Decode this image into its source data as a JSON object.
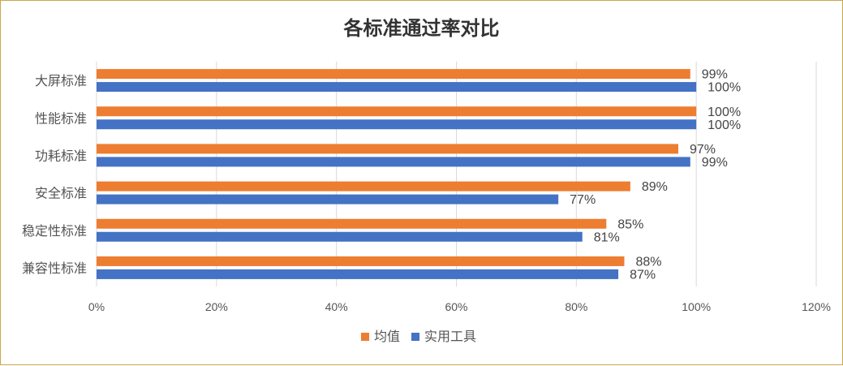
{
  "chart_data": {
    "type": "bar",
    "orientation": "horizontal",
    "title": "各标准通过率对比",
    "categories": [
      "大屏标准",
      "性能标准",
      "功耗标准",
      "安全标准",
      "稳定性标准",
      "兼容性标准"
    ],
    "series": [
      {
        "name": "均值",
        "color": "#ed7d31",
        "values": [
          99,
          100,
          97,
          89,
          85,
          88
        ],
        "labels": [
          "99%",
          "100%",
          "97%",
          "89%",
          "85%",
          "88%"
        ]
      },
      {
        "name": "实用工具",
        "color": "#4472c4",
        "values": [
          100,
          100,
          99,
          77,
          81,
          87
        ],
        "labels": [
          "100%",
          "100%",
          "99%",
          "77%",
          "81%",
          "87%"
        ]
      }
    ],
    "xlim": [
      0,
      120
    ],
    "xticks": [
      0,
      20,
      40,
      60,
      80,
      100,
      120
    ],
    "xtick_labels": [
      "0%",
      "20%",
      "40%",
      "60%",
      "80%",
      "100%",
      "120%"
    ],
    "grid": true,
    "legend_position": "bottom"
  }
}
